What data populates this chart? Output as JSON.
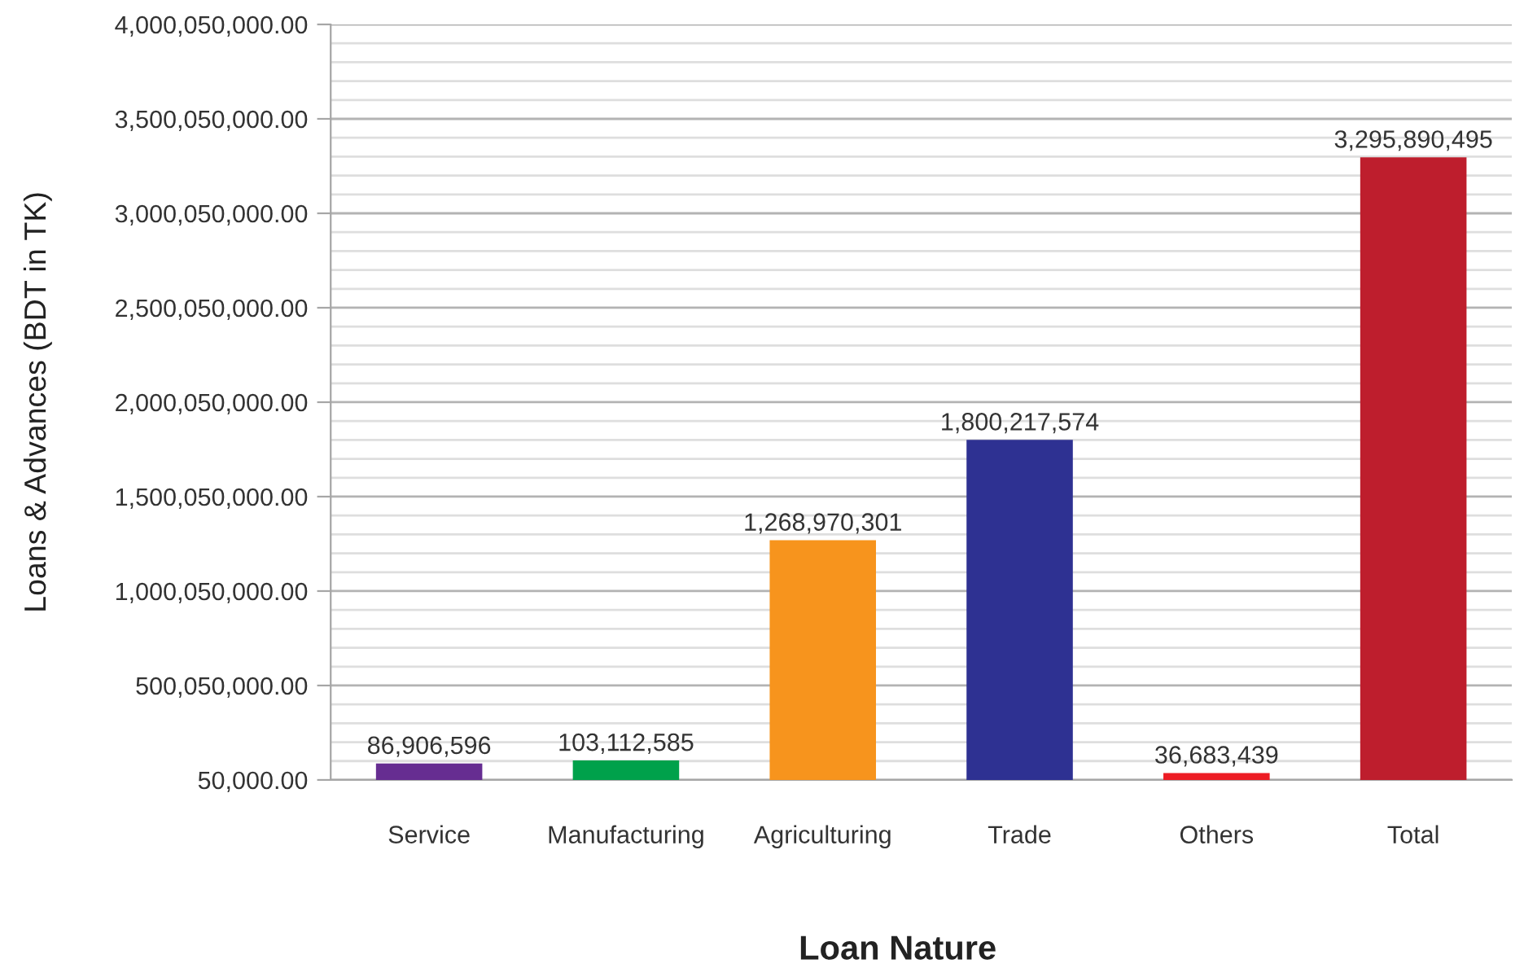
{
  "chart_data": {
    "type": "bar",
    "xlabel": "Loan Nature",
    "ylabel": "Loans & Advances (BDT in TK)",
    "categories": [
      "Service",
      "Manufacturing",
      "Agriculturing",
      "Trade",
      "Others",
      "Total"
    ],
    "values": [
      86906596,
      103112585,
      1268970301,
      1800217574,
      36683439,
      3295890495
    ],
    "value_labels": [
      "86,906,596",
      "103,112,585",
      "1,268,970,301",
      "1,800,217,574",
      "36,683,439",
      "3,295,890,495"
    ],
    "colors": [
      "#662d91",
      "#00a14b",
      "#f7941d",
      "#2e3192",
      "#ed1c24",
      "#be1e2d"
    ],
    "ylim": [
      50000,
      4000050000
    ],
    "yticks": [
      {
        "value": 50000,
        "label": "50,000.00"
      },
      {
        "value": 100050000,
        "label": null
      },
      {
        "value": 200050000,
        "label": null
      },
      {
        "value": 300050000,
        "label": null
      },
      {
        "value": 400050000,
        "label": null
      },
      {
        "value": 500050000,
        "label": "500,050,000.00"
      },
      {
        "value": 600050000,
        "label": null
      },
      {
        "value": 700050000,
        "label": null
      },
      {
        "value": 800050000,
        "label": null
      },
      {
        "value": 900050000,
        "label": null
      },
      {
        "value": 1000050000,
        "label": "1,000,050,000.00"
      },
      {
        "value": 1100050000,
        "label": null
      },
      {
        "value": 1200050000,
        "label": null
      },
      {
        "value": 1300050000,
        "label": null
      },
      {
        "value": 1400050000,
        "label": null
      },
      {
        "value": 1500050000,
        "label": "1,500,050,000.00"
      },
      {
        "value": 1600050000,
        "label": null
      },
      {
        "value": 1700050000,
        "label": null
      },
      {
        "value": 1800050000,
        "label": null
      },
      {
        "value": 1900050000,
        "label": null
      },
      {
        "value": 2000050000,
        "label": "2,000,050,000.00"
      },
      {
        "value": 2100050000,
        "label": null
      },
      {
        "value": 2200050000,
        "label": null
      },
      {
        "value": 2300050000,
        "label": null
      },
      {
        "value": 2400050000,
        "label": null
      },
      {
        "value": 2500050000,
        "label": "2,500,050,000.00"
      },
      {
        "value": 2600050000,
        "label": null
      },
      {
        "value": 2700050000,
        "label": null
      },
      {
        "value": 2800050000,
        "label": null
      },
      {
        "value": 2900050000,
        "label": null
      },
      {
        "value": 3000050000,
        "label": "3,000,050,000.00"
      },
      {
        "value": 3100050000,
        "label": null
      },
      {
        "value": 3200050000,
        "label": null
      },
      {
        "value": 3300050000,
        "label": null
      },
      {
        "value": 3400050000,
        "label": null
      },
      {
        "value": 3500050000,
        "label": "3,500,050,000.00"
      },
      {
        "value": 3600050000,
        "label": null
      },
      {
        "value": 3700050000,
        "label": null
      },
      {
        "value": 3800050000,
        "label": null
      },
      {
        "value": 3900050000,
        "label": null
      },
      {
        "value": 4000050000,
        "label": "4,000,050,000.00"
      }
    ],
    "grid": "y",
    "legend": false
  }
}
